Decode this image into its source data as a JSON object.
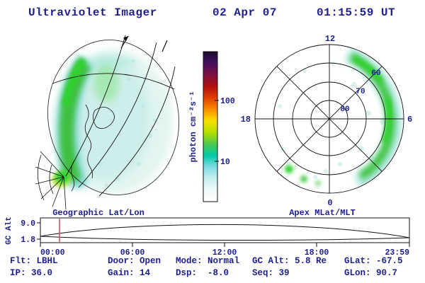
{
  "header": {
    "title": "Ultraviolet Imager",
    "date": "02 Apr 07",
    "time": "01:15:59 UT"
  },
  "colorbar": {
    "label": "photon cm⁻²s⁻¹",
    "tick_labels": [
      "100",
      "10"
    ],
    "colors": [
      "#1a0b2e",
      "#45105e",
      "#7c1040",
      "#b01010",
      "#e04000",
      "#f98c00",
      "#f7e200",
      "#b5e000",
      "#4fc84f",
      "#00c9a8",
      "#7fdde4",
      "#c6f0ef",
      "#eefaf8",
      "#ffffff"
    ]
  },
  "left_panel": {
    "caption": "Geographic Lat/Lon"
  },
  "right_panel": {
    "caption": "Apex MLat/MLT",
    "hours": [
      "12",
      "18",
      "6",
      "0"
    ],
    "rings": [
      "60",
      "70",
      "80"
    ]
  },
  "timeline": {
    "ylabel": "GC Alt",
    "yticks": [
      "9.0",
      "1.8"
    ],
    "xticks": [
      "00:00",
      "06:00",
      "12:00",
      "18:00",
      "23:59"
    ]
  },
  "status": {
    "row1": [
      "Flt: LBHL",
      "Door: Open",
      "Mode: Normal",
      "GC Alt: 5.8 Re",
      "GLat: -67.5"
    ],
    "row2": [
      "IP: 36.0",
      "Gain: 14",
      "Dsp:  -8.0",
      "Seq: 39",
      "GLon: 90.7"
    ]
  },
  "chart_data": [
    {
      "type": "heatmap",
      "title": "Geographic Lat/Lon",
      "quantity": "photon cm⁻²s⁻¹",
      "scale": "log",
      "colorbar_ticks": [
        10,
        100
      ],
      "description": "UV auroral emission crescent along the left limb of the geographic projection; bright green band ~20-100 photon cm⁻²s⁻¹ with diffuse cyan emission ~5-10 filling the disk"
    },
    {
      "type": "heatmap",
      "title": "Apex MLat/MLT",
      "mlat_rings": [
        80,
        70,
        60
      ],
      "mlt_hours": [
        12,
        18,
        6,
        0
      ],
      "description": "Auroral oval emission arc between ~60° and 75° MLat spanning roughly 03-12 MLT (right side of dial), with isolated green patches near 21-22 MLT at ~60° MLat"
    },
    {
      "type": "line",
      "title": "GC Alt",
      "ylabel": "GC Alt",
      "ylim": [
        1.8,
        9.0
      ],
      "x_ticks": [
        "00:00",
        "06:00",
        "12:00",
        "18:00",
        "23:59"
      ],
      "series": [
        {
          "name": "GC Alt (Re), approx",
          "x": [
            "00:00",
            "06:00",
            "12:00",
            "18:00",
            "23:59"
          ],
          "values": [
            2.0,
            7.4,
            9.0,
            7.4,
            2.0
          ]
        }
      ],
      "marker_x": "01:15",
      "current_value_re": 5.8
    }
  ]
}
